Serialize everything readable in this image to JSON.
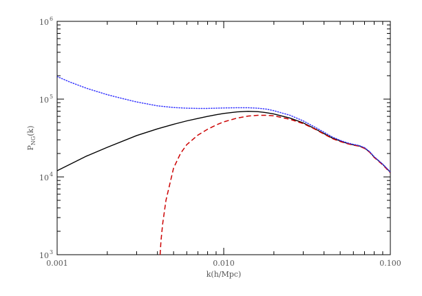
{
  "chart_data": {
    "type": "line",
    "title": "",
    "xlabel": "k(h/Mpc)",
    "ylabel": "P_NG(k)",
    "xscale": "log",
    "yscale": "log",
    "xlim": [
      0.001,
      0.1
    ],
    "ylim": [
      1000,
      1000000
    ],
    "grid": false,
    "legend": "none",
    "x_ticks": [
      {
        "value": 0.001,
        "label": "0.001"
      },
      {
        "value": 0.01,
        "label": "0.010"
      },
      {
        "value": 0.1,
        "label": "0.100"
      }
    ],
    "y_ticks": [
      {
        "value": 1000,
        "base": "10",
        "exp": "3"
      },
      {
        "value": 10000,
        "base": "10",
        "exp": "4"
      },
      {
        "value": 100000,
        "base": "10",
        "exp": "5"
      },
      {
        "value": 1000000,
        "base": "10",
        "exp": "6"
      }
    ],
    "series": [
      {
        "style": "solid",
        "color": "#000000",
        "points": [
          [
            0.001,
            12000
          ],
          [
            0.0015,
            18500
          ],
          [
            0.002,
            24000
          ],
          [
            0.003,
            34000
          ],
          [
            0.004,
            41500
          ],
          [
            0.005,
            47500
          ],
          [
            0.006,
            52500
          ],
          [
            0.007,
            56500
          ],
          [
            0.008,
            60000
          ],
          [
            0.009,
            63000
          ],
          [
            0.01,
            65500
          ],
          [
            0.012,
            68500
          ],
          [
            0.014,
            69800
          ],
          [
            0.016,
            69000
          ],
          [
            0.018,
            67000
          ],
          [
            0.02,
            64500
          ],
          [
            0.025,
            57000
          ],
          [
            0.03,
            49500
          ],
          [
            0.035,
            42000
          ],
          [
            0.04,
            36000
          ],
          [
            0.045,
            31500
          ],
          [
            0.05,
            29000
          ],
          [
            0.055,
            27000
          ],
          [
            0.06,
            25800
          ],
          [
            0.065,
            25000
          ],
          [
            0.07,
            23500
          ],
          [
            0.075,
            21000
          ],
          [
            0.08,
            18000
          ],
          [
            0.09,
            14500
          ],
          [
            0.1,
            11500
          ]
        ]
      },
      {
        "style": "dashed",
        "color": "#cc0000",
        "points": [
          [
            0.00415,
            1000
          ],
          [
            0.0042,
            1500
          ],
          [
            0.0043,
            2500
          ],
          [
            0.0045,
            5000
          ],
          [
            0.005,
            13000
          ],
          [
            0.0055,
            20000
          ],
          [
            0.006,
            26000
          ],
          [
            0.007,
            34500
          ],
          [
            0.008,
            41000
          ],
          [
            0.009,
            46500
          ],
          [
            0.01,
            51000
          ],
          [
            0.012,
            57000
          ],
          [
            0.014,
            60500
          ],
          [
            0.016,
            62000
          ],
          [
            0.018,
            62000
          ],
          [
            0.02,
            61000
          ],
          [
            0.025,
            55000
          ],
          [
            0.03,
            48500
          ],
          [
            0.035,
            41500
          ],
          [
            0.04,
            35500
          ],
          [
            0.045,
            31000
          ],
          [
            0.05,
            28500
          ],
          [
            0.055,
            26800
          ],
          [
            0.06,
            25600
          ],
          [
            0.065,
            24800
          ],
          [
            0.07,
            23300
          ],
          [
            0.075,
            20800
          ],
          [
            0.08,
            17800
          ],
          [
            0.09,
            14300
          ],
          [
            0.1,
            11300
          ]
        ]
      },
      {
        "style": "dotted",
        "color": "#3333ff",
        "points": [
          [
            0.001,
            195000
          ],
          [
            0.0012,
            165000
          ],
          [
            0.0015,
            138000
          ],
          [
            0.002,
            114000
          ],
          [
            0.0025,
            101000
          ],
          [
            0.003,
            92000
          ],
          [
            0.004,
            82000
          ],
          [
            0.005,
            78000
          ],
          [
            0.006,
            76500
          ],
          [
            0.007,
            76000
          ],
          [
            0.008,
            76000
          ],
          [
            0.009,
            76500
          ],
          [
            0.01,
            77000
          ],
          [
            0.012,
            77500
          ],
          [
            0.014,
            77500
          ],
          [
            0.016,
            76500
          ],
          [
            0.018,
            74500
          ],
          [
            0.02,
            71000
          ],
          [
            0.025,
            62000
          ],
          [
            0.03,
            52500
          ],
          [
            0.035,
            44000
          ],
          [
            0.04,
            37500
          ],
          [
            0.045,
            32500
          ],
          [
            0.05,
            29500
          ],
          [
            0.055,
            27500
          ],
          [
            0.06,
            26200
          ],
          [
            0.065,
            25300
          ],
          [
            0.07,
            23800
          ],
          [
            0.075,
            21200
          ],
          [
            0.08,
            18200
          ],
          [
            0.09,
            14600
          ],
          [
            0.1,
            11600
          ]
        ]
      }
    ]
  }
}
